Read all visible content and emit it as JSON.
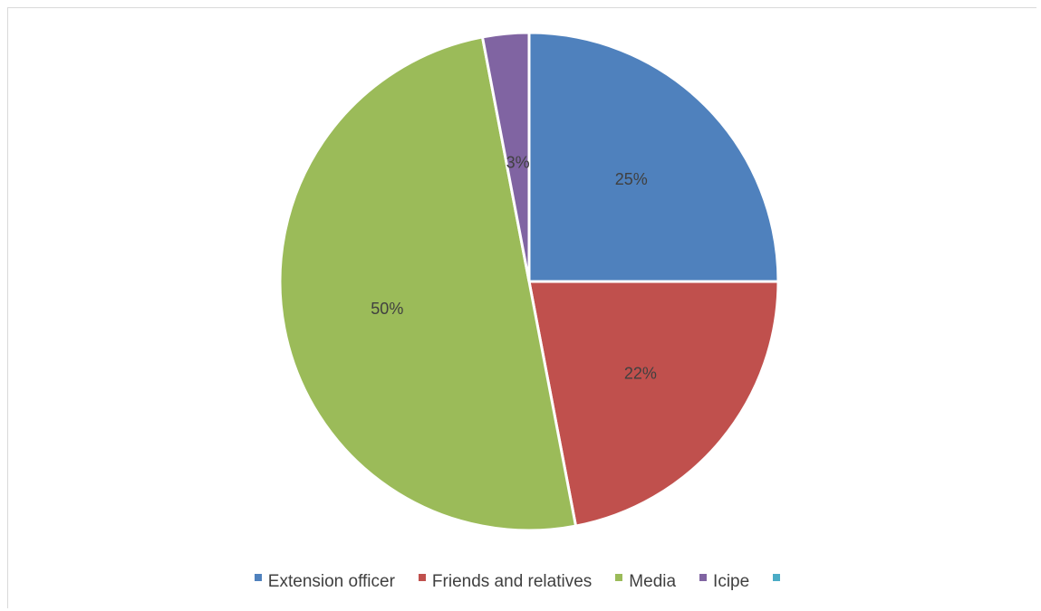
{
  "chart_data": {
    "type": "pie",
    "title": "",
    "categories": [
      "Extension officer",
      "Friends and relatives",
      "Media",
      "Icipe",
      ""
    ],
    "values": [
      25,
      22,
      50,
      3,
      0
    ],
    "labels": [
      "25%",
      "22%",
      "50%",
      "3%",
      ""
    ],
    "colors": [
      "#4f81bd",
      "#c0504d",
      "#9bbb59",
      "#8064a2",
      "#4bacc6"
    ],
    "legend_position": "bottom",
    "start_angle_deg": 0,
    "direction": "clockwise"
  }
}
